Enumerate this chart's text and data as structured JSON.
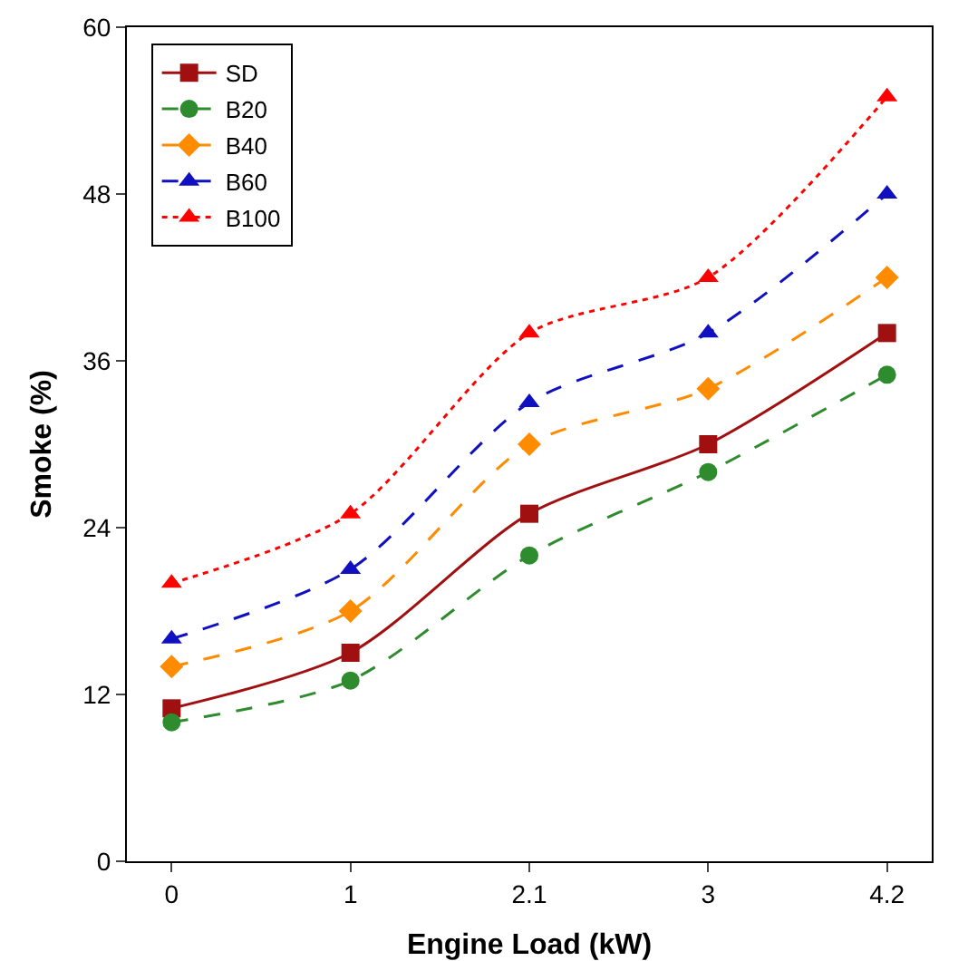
{
  "chart_data": {
    "type": "line",
    "xlabel": "Engine Load (kW)",
    "ylabel": "Smoke (%)",
    "categories": [
      "0",
      "1",
      "2.1",
      "3",
      "4.2"
    ],
    "series": [
      {
        "name": "SD",
        "color": "#a01010",
        "values": [
          11,
          15,
          25,
          30,
          38
        ],
        "marker": "square",
        "line_style": "solid"
      },
      {
        "name": "B20",
        "color": "#2e8b2e",
        "values": [
          10,
          13,
          22,
          28,
          35
        ],
        "marker": "circle",
        "line_style": "dashed"
      },
      {
        "name": "B40",
        "color": "#ff8c00",
        "values": [
          14,
          18,
          30,
          34,
          42
        ],
        "marker": "diamond",
        "line_style": "dashed"
      },
      {
        "name": "B60",
        "color": "#1010c0",
        "values": [
          16,
          21,
          33,
          38,
          48
        ],
        "marker": "triangle",
        "line_style": "dashed"
      },
      {
        "name": "B100",
        "color": "#ff0000",
        "values": [
          20,
          25,
          38,
          42,
          55
        ],
        "marker": "triangle",
        "line_style": "dotted"
      }
    ],
    "ylim": [
      0,
      60
    ],
    "yticks": [
      0,
      12,
      24,
      36,
      48,
      60
    ],
    "grid": false,
    "legend": "top left"
  }
}
